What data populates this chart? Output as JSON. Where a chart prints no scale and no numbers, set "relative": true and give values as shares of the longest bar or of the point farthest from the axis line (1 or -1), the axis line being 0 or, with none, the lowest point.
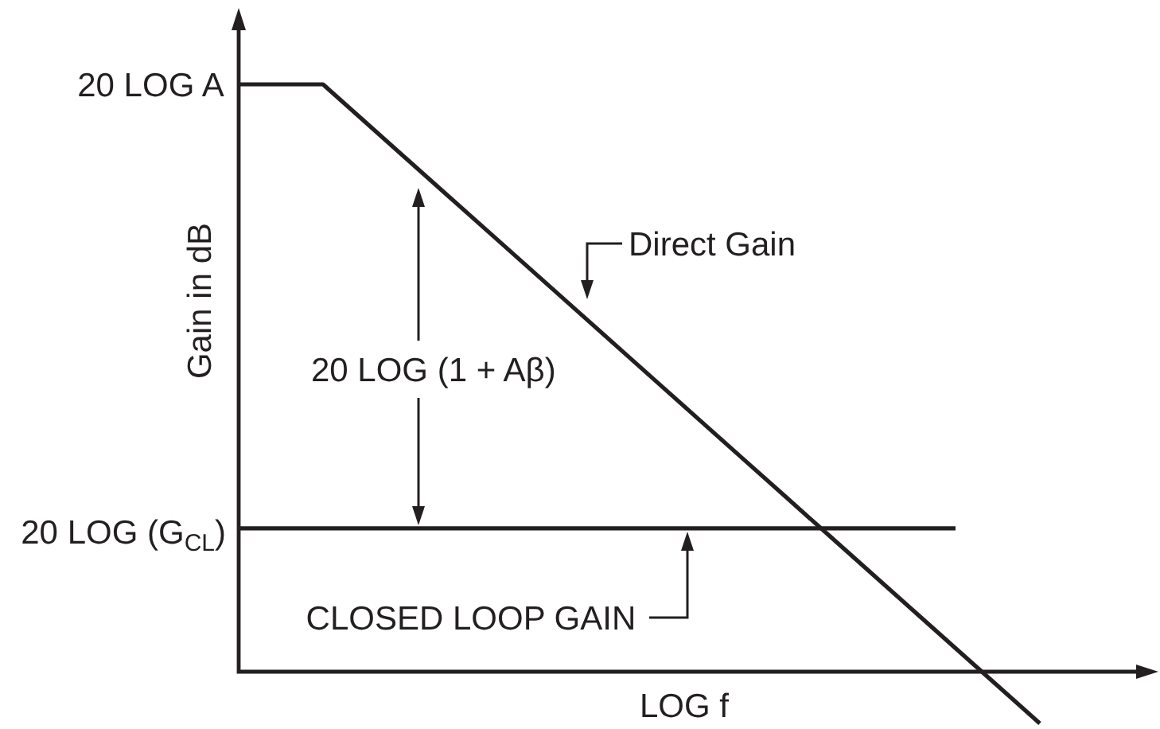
{
  "chart_data": {
    "type": "line",
    "xlabel": "LOG f",
    "ylabel": "Gain in dB",
    "relative": true,
    "categories": [
      null,
      null,
      null,
      null,
      null,
      null,
      null,
      null,
      null,
      null,
      null,
      null,
      null,
      null,
      null,
      null,
      null,
      null,
      null,
      null
    ],
    "series": [
      {
        "name": "Direct Gain",
        "color": "#231f20",
        "values": [
          1,
          1,
          1,
          0.936,
          0.872,
          0.808,
          0.744,
          0.68,
          0.616,
          0.552,
          0.488,
          0.424,
          0.36,
          0.296,
          0.232,
          0.168,
          0.104,
          0.04,
          -0.024,
          -0.088
        ]
      },
      {
        "name": "CLOSED LOOP GAIN",
        "color": "#231f20",
        "values": [
          0.244,
          0.244,
          0.244,
          0.244,
          0.244,
          0.244,
          0.244,
          0.244,
          0.244,
          0.244,
          0.244,
          0.244,
          0.244,
          0.244,
          0.244,
          0.244,
          0.244,
          0.244,
          null,
          null
        ]
      }
    ],
    "annotations": [
      "20 LOG A",
      "20 LOG (G$_{CL}$)",
      "20 LOG (1 + Aβ)"
    ],
    "legend": false,
    "marker": "none",
    "line_style": "solid",
    "tick_labels": false
  }
}
